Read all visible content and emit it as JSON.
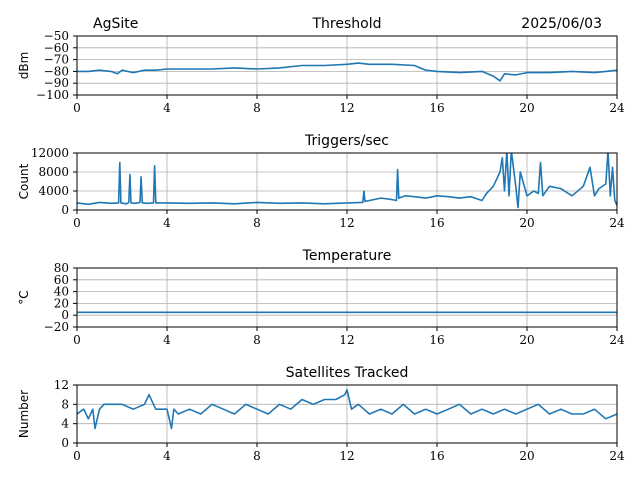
{
  "header": {
    "site": "AgSite",
    "date": "2025/06/03"
  },
  "colors": {
    "series": "#1f77b4",
    "grid": "#b0b0b0"
  },
  "chart_data": [
    {
      "type": "line",
      "title": "Threshold",
      "xlabel": "",
      "ylabel": "dBm",
      "xlim": [
        0,
        24
      ],
      "ylim": [
        -100,
        -50
      ],
      "xticks": [
        0,
        4,
        8,
        12,
        16,
        20,
        24
      ],
      "yticks": [
        -100,
        -90,
        -80,
        -70,
        -60,
        -50
      ],
      "ytick_labels": [
        "−100",
        "−90",
        "−80",
        "−70",
        "−60",
        "−50"
      ],
      "grid": true,
      "series": [
        {
          "x": [
            0,
            0.5,
            1,
            1.5,
            1.8,
            2,
            2.5,
            3,
            3.5,
            4,
            5,
            6,
            7,
            8,
            9,
            10,
            11,
            12,
            12.5,
            13,
            14,
            15,
            15.5,
            16,
            17,
            18,
            18.5,
            18.8,
            19,
            19.5,
            20,
            21,
            22,
            23,
            23.5,
            24
          ],
          "y": [
            -80,
            -80,
            -79,
            -80,
            -82,
            -79,
            -81,
            -79,
            -79,
            -78,
            -78,
            -78,
            -77,
            -78,
            -77,
            -75,
            -75,
            -74,
            -73,
            -74,
            -74,
            -75,
            -79,
            -80,
            -81,
            -80,
            -84,
            -88,
            -82,
            -83,
            -81,
            -81,
            -80,
            -81,
            -80,
            -79
          ]
        }
      ]
    },
    {
      "type": "line",
      "title": "Triggers/sec",
      "xlabel": "",
      "ylabel": "Count",
      "xlim": [
        0,
        24
      ],
      "ylim": [
        0,
        12000
      ],
      "xticks": [
        0,
        4,
        8,
        12,
        16,
        20,
        24
      ],
      "yticks": [
        0,
        4000,
        8000,
        12000
      ],
      "grid": true,
      "series": [
        {
          "x": [
            0,
            0.5,
            1,
            1.5,
            1.85,
            1.9,
            1.95,
            2.2,
            2.3,
            2.35,
            2.4,
            2.6,
            2.8,
            2.85,
            2.9,
            3.1,
            3.4,
            3.45,
            3.5,
            4,
            5,
            6,
            7,
            8,
            9,
            10,
            11,
            12,
            12.7,
            12.75,
            12.8,
            13,
            13.5,
            14,
            14.2,
            14.25,
            14.3,
            14.6,
            15,
            15.5,
            16,
            16.5,
            17,
            17.5,
            18,
            18.2,
            18.5,
            18.8,
            18.9,
            19,
            19.1,
            19.2,
            19.3,
            19.5,
            19.6,
            19.7,
            20,
            20.3,
            20.5,
            20.6,
            20.7,
            21,
            21.5,
            22,
            22.5,
            22.8,
            23,
            23.2,
            23.5,
            23.6,
            23.7,
            23.8,
            23.9,
            24
          ],
          "y": [
            1500,
            1200,
            1600,
            1400,
            1500,
            10000,
            1500,
            1300,
            1600,
            7500,
            1500,
            1400,
            1600,
            7000,
            1500,
            1400,
            1500,
            9300,
            1500,
            1500,
            1400,
            1500,
            1300,
            1600,
            1400,
            1500,
            1300,
            1500,
            1600,
            4000,
            1800,
            2000,
            2500,
            2200,
            2000,
            8500,
            2500,
            3000,
            2800,
            2500,
            3000,
            2800,
            2500,
            2800,
            2000,
            3500,
            5000,
            8000,
            11000,
            4000,
            12500,
            3000,
            12500,
            5000,
            500,
            8000,
            3000,
            4000,
            3500,
            10000,
            3000,
            5000,
            4500,
            3000,
            5000,
            9000,
            3000,
            4500,
            5500,
            12500,
            3000,
            9000,
            2000,
            1000
          ]
        }
      ]
    },
    {
      "type": "line",
      "title": "Temperature",
      "xlabel": "",
      "ylabel": "°C",
      "xlim": [
        0,
        24
      ],
      "ylim": [
        -20,
        80
      ],
      "xticks": [
        0,
        4,
        8,
        12,
        16,
        20,
        24
      ],
      "yticks": [
        -20,
        0,
        20,
        40,
        60,
        80
      ],
      "ytick_labels": [
        "−20",
        "0",
        "20",
        "40",
        "60",
        "80"
      ],
      "grid": true,
      "series": [
        {
          "x": [
            0,
            24
          ],
          "y": [
            5,
            5
          ]
        }
      ]
    },
    {
      "type": "line",
      "title": "Satellites Tracked",
      "xlabel": "",
      "ylabel": "Number",
      "xlim": [
        0,
        24
      ],
      "ylim": [
        0,
        12
      ],
      "xticks": [
        0,
        4,
        8,
        12,
        16,
        20,
        24
      ],
      "yticks": [
        0,
        4,
        8,
        12
      ],
      "grid": true,
      "series": [
        {
          "x": [
            0,
            0.3,
            0.5,
            0.7,
            0.8,
            1,
            1.2,
            1.5,
            2,
            2.5,
            3,
            3.2,
            3.5,
            4,
            4.2,
            4.3,
            4.5,
            5,
            5.5,
            6,
            6.5,
            7,
            7.5,
            8,
            8.5,
            9,
            9.5,
            10,
            10.5,
            11,
            11.5,
            11.9,
            12,
            12.2,
            12.5,
            13,
            13.5,
            14,
            14.5,
            15,
            15.5,
            16,
            16.5,
            17,
            17.5,
            18,
            18.5,
            19,
            19.5,
            20,
            20.5,
            21,
            21.5,
            22,
            22.5,
            23,
            23.5,
            24
          ],
          "y": [
            6,
            7,
            5,
            7,
            3,
            7,
            8,
            8,
            8,
            7,
            8,
            10,
            7,
            7,
            3,
            7,
            6,
            7,
            6,
            8,
            7,
            6,
            8,
            7,
            6,
            8,
            7,
            9,
            8,
            9,
            9,
            10,
            11,
            7,
            8,
            6,
            7,
            6,
            8,
            6,
            7,
            6,
            7,
            8,
            6,
            7,
            6,
            7,
            6,
            7,
            8,
            6,
            7,
            6,
            6,
            7,
            5,
            6
          ]
        }
      ]
    }
  ]
}
